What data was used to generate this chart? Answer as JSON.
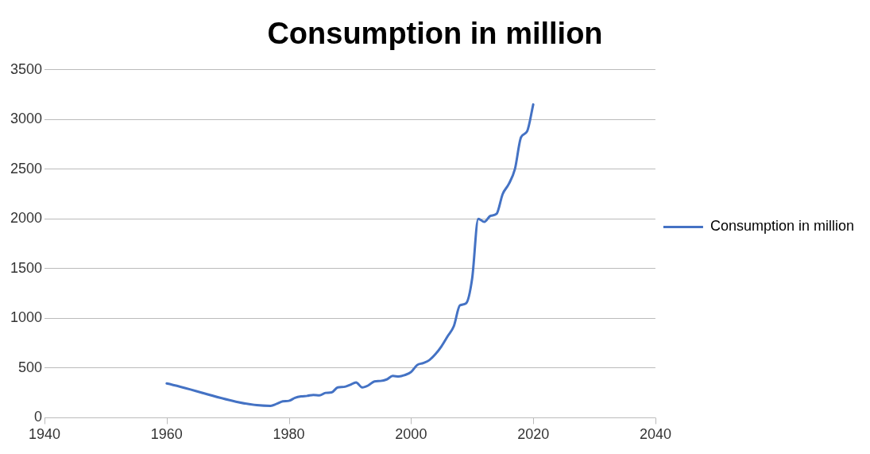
{
  "chart_data": {
    "type": "line",
    "title": "Consumption in million",
    "x": [
      1960,
      1977,
      1978,
      1979,
      1980,
      1981,
      1982,
      1983,
      1984,
      1985,
      1986,
      1987,
      1988,
      1989,
      1990,
      1991,
      1992,
      1993,
      1994,
      1995,
      1996,
      1997,
      1998,
      1999,
      2000,
      2001,
      2002,
      2003,
      2004,
      2005,
      2006,
      2007,
      2008,
      2009,
      2010,
      2011,
      2012,
      2013,
      2014,
      2015,
      2016,
      2017,
      2018,
      2019,
      2020
    ],
    "series": [
      {
        "name": "Consumption in million",
        "color": "#4472c4",
        "values": [
          345,
          120,
          140,
          165,
          170,
          200,
          215,
          220,
          230,
          225,
          250,
          255,
          305,
          310,
          330,
          355,
          305,
          325,
          365,
          370,
          385,
          420,
          415,
          430,
          460,
          530,
          550,
          580,
          640,
          720,
          820,
          920,
          1130,
          1150,
          1400,
          2000,
          1970,
          2030,
          2050,
          2250,
          2350,
          2500,
          2820,
          2880,
          3150
        ]
      }
    ],
    "xlim": [
      1940,
      2040
    ],
    "xticks": [
      1940,
      1960,
      1980,
      2000,
      2020,
      2040
    ],
    "ylim": [
      0,
      3500
    ],
    "yticks": [
      0,
      500,
      1000,
      1500,
      2000,
      2500,
      3000,
      3500
    ],
    "grid": "y",
    "legend": "right",
    "marker": "none",
    "line_style": "solid"
  }
}
